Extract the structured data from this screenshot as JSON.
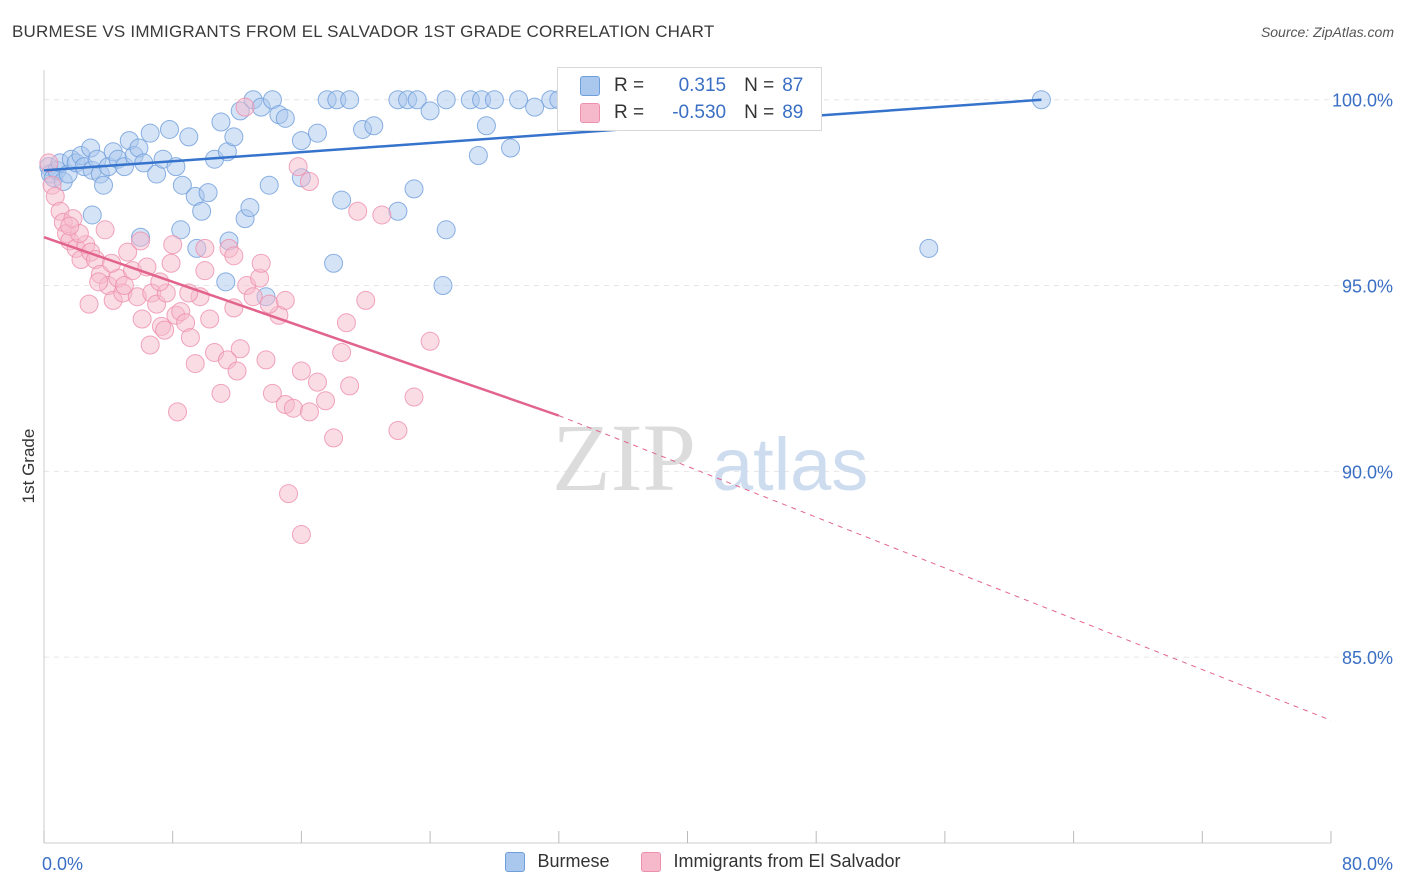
{
  "title": "BURMESE VS IMMIGRANTS FROM EL SALVADOR 1ST GRADE CORRELATION CHART",
  "source": "Source: ZipAtlas.com",
  "watermark": {
    "zip": "ZIP",
    "atlas": "atlas"
  },
  "legend_top": [
    {
      "r_label": "R =",
      "r_value": "0.315",
      "n_label": "N =",
      "n_value": "87"
    },
    {
      "r_label": "R =",
      "r_value": "-0.530",
      "n_label": "N =",
      "n_value": "89"
    }
  ],
  "legend_bottom": [
    "Burmese",
    "Immigrants from El Salvador"
  ],
  "colors": {
    "burmese_fill": "#aac8ee",
    "burmese_stroke": "#6f9edb",
    "burmese_line": "#3573cc",
    "salvador_fill": "#f6b9cc",
    "salvador_stroke": "#ee8fae",
    "salvador_line": "#e2648d",
    "tick_label": "#3a6fc4",
    "grid": "#e6e6e6"
  },
  "chart_data": {
    "type": "scatter",
    "title": "BURMESE VS IMMIGRANTS FROM EL SALVADOR 1ST GRADE CORRELATION CHART",
    "xlabel": "",
    "ylabel": "1st Grade",
    "xlim": [
      0,
      80
    ],
    "ylim": [
      80,
      100.8
    ],
    "x_tick_labels": [
      "0.0%",
      "80.0%"
    ],
    "y_ticks": [
      85,
      90,
      95,
      100
    ],
    "y_tick_labels": [
      "85.0%",
      "90.0%",
      "95.0%",
      "100.0%"
    ],
    "grid": true,
    "legend_position": "top-center",
    "series": [
      {
        "name": "Burmese",
        "r": 0.315,
        "n": 87,
        "trend": {
          "x": [
            0,
            62
          ],
          "y": [
            98.1,
            100.0
          ]
        },
        "points": [
          [
            0.3,
            98.2
          ],
          [
            0.4,
            98.0
          ],
          [
            0.6,
            97.9
          ],
          [
            0.8,
            98.1
          ],
          [
            1.0,
            98.3
          ],
          [
            1.2,
            97.8
          ],
          [
            1.5,
            98.0
          ],
          [
            1.7,
            98.4
          ],
          [
            2.0,
            98.3
          ],
          [
            2.3,
            98.5
          ],
          [
            2.5,
            98.2
          ],
          [
            2.9,
            98.7
          ],
          [
            3.0,
            98.1
          ],
          [
            3.3,
            98.4
          ],
          [
            3.5,
            98.0
          ],
          [
            3.7,
            97.7
          ],
          [
            4.0,
            98.2
          ],
          [
            4.3,
            98.6
          ],
          [
            4.6,
            98.4
          ],
          [
            5.0,
            98.2
          ],
          [
            5.3,
            98.9
          ],
          [
            5.6,
            98.5
          ],
          [
            5.9,
            98.7
          ],
          [
            6.2,
            98.3
          ],
          [
            6.6,
            99.1
          ],
          [
            7.0,
            98.0
          ],
          [
            7.4,
            98.4
          ],
          [
            7.8,
            99.2
          ],
          [
            8.2,
            98.2
          ],
          [
            8.6,
            97.7
          ],
          [
            9.0,
            99.0
          ],
          [
            9.4,
            97.4
          ],
          [
            9.8,
            97.0
          ],
          [
            10.2,
            97.5
          ],
          [
            10.6,
            98.4
          ],
          [
            11.0,
            99.4
          ],
          [
            11.4,
            98.6
          ],
          [
            11.8,
            99.0
          ],
          [
            12.2,
            99.7
          ],
          [
            13.0,
            100.0
          ],
          [
            13.5,
            99.8
          ],
          [
            14.2,
            100.0
          ],
          [
            14.6,
            99.6
          ],
          [
            15.0,
            99.5
          ],
          [
            16.0,
            98.9
          ],
          [
            17.0,
            99.1
          ],
          [
            17.6,
            100.0
          ],
          [
            18.2,
            100.0
          ],
          [
            19.0,
            100.0
          ],
          [
            19.8,
            99.2
          ],
          [
            20.5,
            99.3
          ],
          [
            22.0,
            100.0
          ],
          [
            22.6,
            100.0
          ],
          [
            23.2,
            100.0
          ],
          [
            24.0,
            99.7
          ],
          [
            25.0,
            100.0
          ],
          [
            26.5,
            100.0
          ],
          [
            27.2,
            100.0
          ],
          [
            28.0,
            100.0
          ],
          [
            27.5,
            99.3
          ],
          [
            29.5,
            100.0
          ],
          [
            31.5,
            100.0
          ],
          [
            32.0,
            100.0
          ],
          [
            30.5,
            99.8
          ],
          [
            29.0,
            98.7
          ],
          [
            33.8,
            99.5
          ],
          [
            36.8,
            99.8
          ],
          [
            62.0,
            100.0
          ],
          [
            27.0,
            98.5
          ],
          [
            23.0,
            97.6
          ],
          [
            22.0,
            97.0
          ],
          [
            16.0,
            97.9
          ],
          [
            14.0,
            97.7
          ],
          [
            12.5,
            96.8
          ],
          [
            11.5,
            96.2
          ],
          [
            11.3,
            95.1
          ],
          [
            13.8,
            94.7
          ],
          [
            18.5,
            97.3
          ],
          [
            25.0,
            96.5
          ],
          [
            24.8,
            95.0
          ],
          [
            55.0,
            96.0
          ],
          [
            18.0,
            95.6
          ],
          [
            8.5,
            96.5
          ],
          [
            9.5,
            96.0
          ],
          [
            6.0,
            96.3
          ],
          [
            3.0,
            96.9
          ],
          [
            12.8,
            97.1
          ]
        ]
      },
      {
        "name": "Immigrants from El Salvador",
        "r": -0.53,
        "n": 89,
        "trend": {
          "x": [
            0,
            32
          ],
          "y": [
            96.3,
            91.5
          ]
        },
        "trend_extension": {
          "x": [
            32,
            80
          ],
          "y": [
            91.5,
            83.3
          ]
        },
        "points": [
          [
            0.3,
            98.3
          ],
          [
            0.5,
            97.7
          ],
          [
            0.7,
            97.4
          ],
          [
            1.0,
            97.0
          ],
          [
            1.2,
            96.7
          ],
          [
            1.4,
            96.4
          ],
          [
            1.6,
            96.2
          ],
          [
            1.8,
            96.8
          ],
          [
            2.0,
            96.0
          ],
          [
            2.3,
            95.7
          ],
          [
            2.6,
            96.1
          ],
          [
            2.9,
            95.9
          ],
          [
            3.2,
            95.7
          ],
          [
            3.5,
            95.3
          ],
          [
            3.8,
            96.5
          ],
          [
            4.0,
            95.0
          ],
          [
            4.3,
            94.6
          ],
          [
            4.6,
            95.2
          ],
          [
            4.9,
            94.8
          ],
          [
            5.2,
            95.9
          ],
          [
            5.5,
            95.4
          ],
          [
            5.8,
            94.7
          ],
          [
            6.1,
            94.1
          ],
          [
            6.4,
            95.5
          ],
          [
            6.7,
            94.8
          ],
          [
            7.0,
            94.5
          ],
          [
            7.3,
            93.9
          ],
          [
            7.6,
            94.8
          ],
          [
            7.9,
            95.6
          ],
          [
            8.2,
            94.2
          ],
          [
            8.5,
            94.3
          ],
          [
            8.8,
            94.0
          ],
          [
            9.1,
            93.6
          ],
          [
            9.4,
            92.9
          ],
          [
            9.7,
            94.7
          ],
          [
            10.0,
            95.4
          ],
          [
            10.3,
            94.1
          ],
          [
            10.6,
            93.2
          ],
          [
            11.0,
            92.1
          ],
          [
            11.4,
            93.0
          ],
          [
            11.8,
            94.4
          ],
          [
            12.2,
            93.3
          ],
          [
            12.6,
            95.0
          ],
          [
            13.0,
            94.7
          ],
          [
            13.4,
            95.2
          ],
          [
            13.8,
            93.0
          ],
          [
            14.2,
            92.1
          ],
          [
            14.6,
            94.2
          ],
          [
            15.0,
            91.8
          ],
          [
            15.5,
            91.7
          ],
          [
            16.0,
            92.7
          ],
          [
            16.5,
            91.6
          ],
          [
            17.0,
            92.4
          ],
          [
            17.5,
            91.9
          ],
          [
            18.0,
            90.9
          ],
          [
            18.5,
            93.2
          ],
          [
            19.0,
            92.3
          ],
          [
            20.0,
            94.6
          ],
          [
            21.0,
            96.9
          ],
          [
            22.0,
            91.1
          ],
          [
            23.0,
            92.0
          ],
          [
            24.0,
            93.5
          ],
          [
            19.5,
            97.0
          ],
          [
            18.8,
            94.0
          ],
          [
            16.5,
            97.8
          ],
          [
            15.8,
            98.2
          ],
          [
            12.5,
            99.8
          ],
          [
            11.5,
            96.0
          ],
          [
            10.0,
            96.0
          ],
          [
            8.0,
            96.1
          ],
          [
            6.0,
            96.2
          ],
          [
            5.0,
            95.0
          ],
          [
            4.2,
            95.6
          ],
          [
            3.4,
            95.1
          ],
          [
            2.8,
            94.5
          ],
          [
            2.2,
            96.4
          ],
          [
            1.6,
            96.6
          ],
          [
            13.5,
            95.6
          ],
          [
            14.0,
            94.5
          ],
          [
            15.0,
            94.6
          ],
          [
            11.8,
            95.8
          ],
          [
            7.2,
            95.1
          ],
          [
            6.6,
            93.4
          ],
          [
            7.5,
            93.8
          ],
          [
            8.3,
            91.6
          ],
          [
            15.2,
            89.4
          ],
          [
            16.0,
            88.3
          ],
          [
            12.0,
            92.7
          ],
          [
            9.0,
            94.8
          ]
        ]
      }
    ]
  }
}
